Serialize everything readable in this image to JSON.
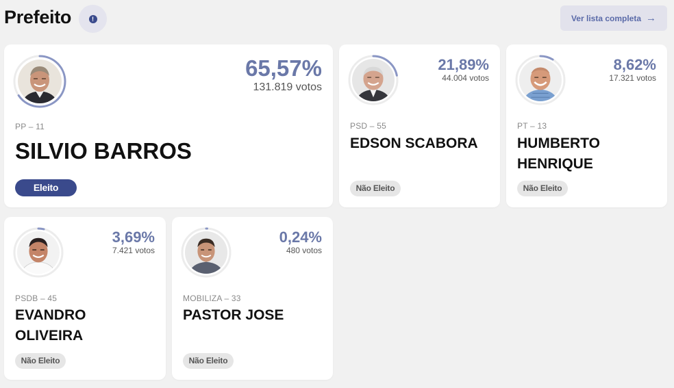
{
  "header": {
    "title": "Prefeito",
    "info_icon": "info-icon",
    "full_list_label": "Ver lista completa",
    "full_list_arrow": "→"
  },
  "colors": {
    "accent": "#3a4a8c",
    "percent": "#6a78a8",
    "ring": "#8a96c4"
  },
  "candidates": [
    {
      "party": "PP – 11",
      "name": "SILVIO BARROS",
      "percent_label": "65,57%",
      "votes_label": "131.819 votos",
      "share": 0.6557,
      "status": "Eleito"
    },
    {
      "party": "PSD – 55",
      "name": "EDSON SCABORA",
      "percent_label": "21,89%",
      "votes_label": "44.004 votos",
      "share": 0.2189,
      "status": "Não Eleito"
    },
    {
      "party": "PT – 13",
      "name_line1": "HUMBERTO",
      "name_line2": "HENRIQUE",
      "percent_label": "8,62%",
      "votes_label": "17.321 votos",
      "share": 0.0862,
      "status": "Não Eleito"
    },
    {
      "party": "PSDB – 45",
      "name_line1": "EVANDRO",
      "name_line2": "OLIVEIRA",
      "percent_label": "3,69%",
      "votes_label": "7.421 votos",
      "share": 0.0369,
      "status": "Não Eleito"
    },
    {
      "party": "MOBILIZA – 33",
      "name": "PASTOR JOSE",
      "percent_label": "0,24%",
      "votes_label": "480 votos",
      "share": 0.0024,
      "status": "Não Eleito"
    }
  ]
}
